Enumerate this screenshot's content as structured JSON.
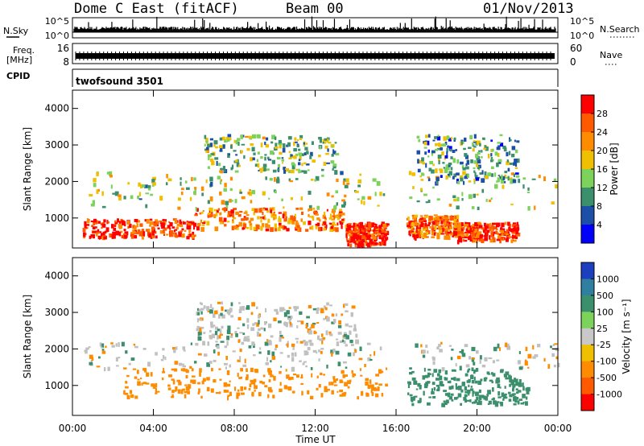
{
  "header": {
    "station": "Dome C East (fitACF)",
    "beam": "Beam 00",
    "date": "01/Nov/2013"
  },
  "top_panels": {
    "nsky_label": "N.Sky",
    "nsky_ticks": [
      "10^5",
      "10^0"
    ],
    "nsearch_label": "N.Search",
    "nsearch_ticks": [
      "10^5",
      "10^0"
    ],
    "freq_label_1": "Freq.",
    "freq_label_2": "[MHz]",
    "freq_ticks": [
      "16",
      "8"
    ],
    "nave_label": "Nave",
    "nave_ticks": [
      "60",
      "0"
    ],
    "cpid_label": "CPID",
    "cpid_text": "twofsound 3501"
  },
  "time_axis": {
    "label": "Time UT",
    "ticks": [
      "00:00",
      "04:00",
      "08:00",
      "12:00",
      "16:00",
      "20:00",
      "00:00"
    ]
  },
  "panels": [
    {
      "ylabel": "Slant Range [km]",
      "yticks": [
        "1000",
        "2000",
        "3000",
        "4000"
      ],
      "colorbar_label": "Power [dB]",
      "colorbar_ticks": [
        "4",
        "8",
        "12",
        "16",
        "20",
        "24",
        "28"
      ]
    },
    {
      "ylabel": "Slant Range [km]",
      "yticks": [
        "1000",
        "2000",
        "3000",
        "4000"
      ],
      "colorbar_label": "Velocity [m s⁻¹]",
      "colorbar_ticks": [
        "1000",
        "500",
        "100",
        "25",
        "-25",
        "-100",
        "-500",
        "-1000"
      ]
    }
  ],
  "colors": {
    "power_scale": [
      "#0000ff",
      "#1c4fa8",
      "#3c8f6c",
      "#7cd25a",
      "#f0c000",
      "#ff8c00",
      "#ff5a00",
      "#ff0000"
    ],
    "velocity_scale": [
      "#1c3fbf",
      "#2f7fa0",
      "#3c8f6c",
      "#7cd25a",
      "#c8c8c8",
      "#f0c000",
      "#ff8c00",
      "#ff5a00",
      "#ff0000"
    ],
    "velocity_gray": "#c0c0c0"
  },
  "chart_data": [
    {
      "type": "line",
      "name": "N.Sky / N.Search / Freq / Nave",
      "x_range_hours": [
        0,
        24
      ],
      "freq_mhz": 10,
      "nave_level": 30
    },
    {
      "type": "heatmap",
      "quantity": "Power",
      "unit": "dB",
      "x_range_hours": [
        0,
        24
      ],
      "y_range_km": [
        180,
        4500
      ],
      "color_range": [
        0,
        30
      ],
      "gap_hours": [
        15.5,
        16.5
      ],
      "features": [
        {
          "x": [
            0.5,
            6.0
          ],
          "y": [
            500,
            1000
          ],
          "value": 26
        },
        {
          "x": [
            6.0,
            13.5
          ],
          "y": [
            700,
            1300
          ],
          "value": 22
        },
        {
          "x": [
            13.5,
            15.5
          ],
          "y": [
            300,
            900
          ],
          "value": 28
        },
        {
          "x": [
            16.5,
            19.0
          ],
          "y": [
            500,
            1100
          ],
          "value": 24
        },
        {
          "x": [
            19.0,
            22.0
          ],
          "y": [
            400,
            900
          ],
          "value": 26
        },
        {
          "x": [
            0.5,
            24.0
          ],
          "y": [
            1300,
            2300
          ],
          "value": 14
        },
        {
          "x": [
            6.5,
            13.0
          ],
          "y": [
            2300,
            3300
          ],
          "value": 12
        },
        {
          "x": [
            17.0,
            22.0
          ],
          "y": [
            2000,
            3300
          ],
          "value": 10
        }
      ]
    },
    {
      "type": "heatmap",
      "quantity": "Velocity",
      "unit": "m s^-1",
      "x_range_hours": [
        0,
        24
      ],
      "y_range_km": [
        180,
        4500
      ],
      "color_ticks": [
        1000,
        500,
        100,
        25,
        -25,
        -100,
        -500,
        -1000
      ],
      "gap_hours": [
        15.5,
        16.5
      ],
      "features": [
        {
          "x": [
            2.5,
            15.5
          ],
          "y": [
            700,
            1500
          ],
          "value": -300
        },
        {
          "x": [
            16.5,
            22.5
          ],
          "y": [
            500,
            1500
          ],
          "value": 300
        },
        {
          "x": [
            0.5,
            24.0
          ],
          "y": [
            1500,
            2200
          ],
          "value": 0
        },
        {
          "x": [
            6.0,
            14.0
          ],
          "y": [
            2200,
            3300
          ],
          "value": 0
        }
      ]
    }
  ]
}
